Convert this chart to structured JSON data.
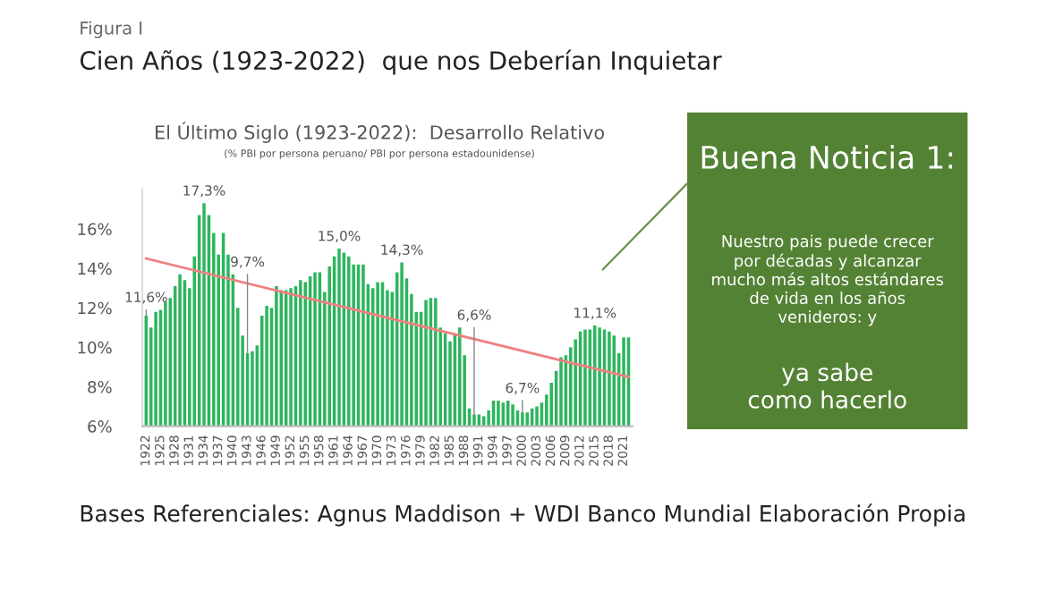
{
  "chart_data": [
    {
      "type": "bar",
      "title": "El Último Siglo (1923-2022):  Desarrollo Relativo",
      "subtitle": "(% PBI por persona peruano/ PBI por persona estadounidense)",
      "annotations": [
        "Figura I",
        "Cien Años (1923-2022)  que nos Deberían Inquietar",
        "Bases Referenciales: Agnus Maddison + WDI Banco Mundial Elaboración Propia",
        {
          "text": "11,6%",
          "x": 1922,
          "y": 11.6
        },
        {
          "text": "17,3%",
          "x": 1934,
          "y": 17.3
        },
        {
          "text": "9,7%",
          "x": 1943,
          "y": 9.7
        },
        {
          "text": "15,0%",
          "x": 1962,
          "y": 15.0
        },
        {
          "text": "14,3%",
          "x": 1975,
          "y": 14.3
        },
        {
          "text": "6,6%",
          "x": 1990,
          "y": 6.6
        },
        {
          "text": "6,7%",
          "x": 2000,
          "y": 6.7
        },
        {
          "text": "11,1%",
          "x": 2015,
          "y": 11.1
        }
      ],
      "x": [
        1922,
        1923,
        1924,
        1925,
        1926,
        1927,
        1928,
        1929,
        1930,
        1931,
        1932,
        1933,
        1934,
        1935,
        1936,
        1937,
        1938,
        1939,
        1940,
        1941,
        1942,
        1943,
        1944,
        1945,
        1946,
        1947,
        1948,
        1949,
        1950,
        1951,
        1952,
        1953,
        1954,
        1955,
        1956,
        1957,
        1958,
        1959,
        1960,
        1961,
        1962,
        1963,
        1964,
        1965,
        1966,
        1967,
        1968,
        1969,
        1970,
        1971,
        1972,
        1973,
        1974,
        1975,
        1976,
        1977,
        1978,
        1979,
        1980,
        1981,
        1982,
        1983,
        1984,
        1985,
        1986,
        1987,
        1988,
        1989,
        1990,
        1991,
        1992,
        1993,
        1994,
        1995,
        1996,
        1997,
        1998,
        1999,
        2000,
        2001,
        2002,
        2003,
        2004,
        2005,
        2006,
        2007,
        2008,
        2009,
        2010,
        2011,
        2012,
        2013,
        2014,
        2015,
        2016,
        2017,
        2018,
        2019,
        2020,
        2021,
        2022
      ],
      "series": [
        {
          "type": "bar",
          "color": "#2db55d",
          "values": [
            11.6,
            11.0,
            11.8,
            11.9,
            12.3,
            12.5,
            13.1,
            13.7,
            13.4,
            13.0,
            14.6,
            16.7,
            17.3,
            16.7,
            15.8,
            14.7,
            15.8,
            14.7,
            13.7,
            12.0,
            10.6,
            9.7,
            9.8,
            10.1,
            11.6,
            12.1,
            12.0,
            13.1,
            12.9,
            12.9,
            13.0,
            13.1,
            13.4,
            13.3,
            13.6,
            13.8,
            13.8,
            12.8,
            14.1,
            14.6,
            15.0,
            14.8,
            14.6,
            14.2,
            14.2,
            14.2,
            13.2,
            13.0,
            13.3,
            13.3,
            12.9,
            12.8,
            13.8,
            14.3,
            13.5,
            12.7,
            11.8,
            11.8,
            12.4,
            12.5,
            12.5,
            11.0,
            10.7,
            10.3,
            10.7,
            11.0,
            9.6,
            6.9,
            6.6,
            6.6,
            6.5,
            6.8,
            7.3,
            7.3,
            7.2,
            7.3,
            7.1,
            6.8,
            6.7,
            6.7,
            6.9,
            7.0,
            7.2,
            7.6,
            8.2,
            8.8,
            9.5,
            9.6,
            10.0,
            10.4,
            10.8,
            10.9,
            10.9,
            11.1,
            11.0,
            10.9,
            10.8,
            10.6,
            9.7,
            10.5,
            10.5
          ]
        },
        {
          "type": "line",
          "color": "#f08080",
          "x": [
            1922,
            2022
          ],
          "values": [
            14.5,
            8.5
          ]
        }
      ],
      "xlim": [
        1921.2,
        2022.8
      ],
      "xticks": [
        1922,
        1925,
        1928,
        1931,
        1934,
        1937,
        1940,
        1943,
        1946,
        1949,
        1952,
        1955,
        1958,
        1961,
        1964,
        1967,
        1970,
        1973,
        1976,
        1979,
        1982,
        1985,
        1988,
        1991,
        1994,
        1997,
        2000,
        2003,
        2006,
        2009,
        2012,
        2015,
        2018,
        2021
      ],
      "ylim": [
        6,
        18
      ],
      "yticks": [
        {
          "value": 6,
          "label": "6%"
        },
        {
          "value": 8,
          "label": "8%"
        },
        {
          "value": 10,
          "label": "10%"
        },
        {
          "value": 12,
          "label": "12%"
        },
        {
          "value": 14,
          "label": "14%"
        },
        {
          "value": 16,
          "label": "16%"
        }
      ],
      "grid": false,
      "legend": false
    },
    {
      "type": "other",
      "title": "Buena Noticia 1:",
      "annotations": [
        "Nuestro pais puede crecer\npor décadas y alcanzar\nmucho más altos estándares\nde vida en los años\nvenideros: y",
        "ya sabe\ncomo hacerlo"
      ]
    }
  ]
}
